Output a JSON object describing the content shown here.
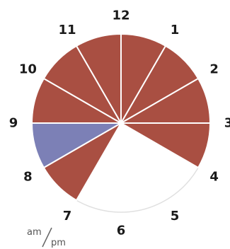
{
  "chart_data": {
    "type": "pie",
    "subtype": "12-hour clock",
    "hour_labels": [
      "12",
      "1",
      "2",
      "3",
      "4",
      "5",
      "6",
      "7",
      "8",
      "9",
      "10",
      "11"
    ],
    "slices": [
      {
        "from": 12,
        "to": 1,
        "state": "am"
      },
      {
        "from": 1,
        "to": 2,
        "state": "am"
      },
      {
        "from": 2,
        "to": 3,
        "state": "am"
      },
      {
        "from": 3,
        "to": 4,
        "state": "am"
      },
      {
        "from": 4,
        "to": 5,
        "state": "empty"
      },
      {
        "from": 5,
        "to": 6,
        "state": "empty"
      },
      {
        "from": 6,
        "to": 7,
        "state": "empty"
      },
      {
        "from": 7,
        "to": 8,
        "state": "am"
      },
      {
        "from": 8,
        "to": 9,
        "state": "pm"
      },
      {
        "from": 9,
        "to": 10,
        "state": "am"
      },
      {
        "from": 10,
        "to": 11,
        "state": "am"
      },
      {
        "from": 11,
        "to": 12,
        "state": "am"
      }
    ],
    "colors": {
      "am": "#a94f42",
      "pm": "#7c80b6",
      "empty": "#ffffff",
      "outline": "#e0e0e0",
      "divider": "#ffffff"
    },
    "legend": {
      "am_label": "am",
      "pm_label": "pm",
      "position": "bottom-left"
    }
  }
}
